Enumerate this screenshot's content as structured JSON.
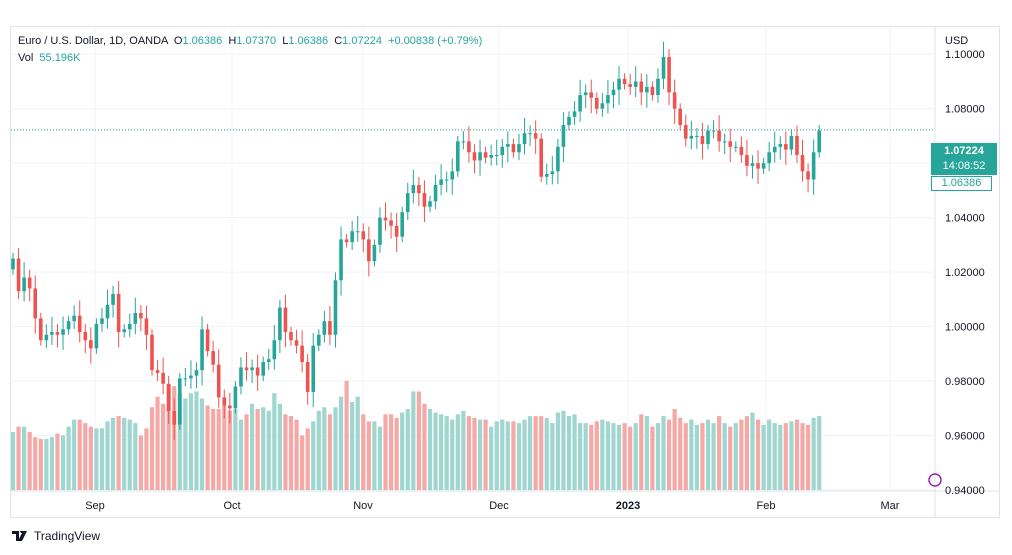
{
  "legend": {
    "symbol": "Euro / U.S. Dollar, 1D, OANDA",
    "o_label": "O",
    "o": "1.06386",
    "h_label": "H",
    "h": "1.07370",
    "l_label": "L",
    "l": "1.06386",
    "c_label": "C",
    "c": "1.07224",
    "change": "+0.00838 (+0.79%)",
    "vol_label": "Vol",
    "vol": "55.196K"
  },
  "price_tag": {
    "price": "1.07224",
    "countdown": "14:08:52"
  },
  "low_tag": "1.06386",
  "currency": "USD",
  "brand": "TradingView",
  "colors": {
    "up": "#26a69a",
    "down": "#ef5350",
    "up_vol": "#9fd6cf",
    "down_vol": "#f5a9a7"
  },
  "chart_data": {
    "type": "candlestick",
    "ylim": [
      0.94,
      1.11
    ],
    "yticks": [
      "1.10000",
      "1.08000",
      "1.06000",
      "1.04000",
      "1.02000",
      "1.00000",
      "0.98000",
      "0.96000",
      "0.94000"
    ],
    "xticks": [
      "Sep",
      "Oct",
      "Nov",
      "Dec",
      "2023",
      "Feb",
      "Mar"
    ],
    "close_line": 1.07224,
    "closes": [
      1.025,
      1.013,
      1.018,
      1.014,
      1.003,
      0.995,
      0.997,
      0.998,
      0.997,
      0.999,
      1.002,
      1.004,
      0.998,
      0.995,
      0.992,
      1.001,
      1.003,
      1.008,
      1.012,
      0.998,
      0.999,
      1.001,
      1.005,
      1.003,
      0.997,
      0.984,
      0.983,
      0.979,
      0.969,
      0.964,
      0.981,
      0.981,
      0.982,
      0.984,
      0.999,
      0.991,
      0.986,
      0.974,
      0.971,
      0.97,
      0.978,
      0.985,
      0.984,
      0.985,
      0.982,
      0.987,
      0.988,
      0.995,
      1.007,
      0.998,
      0.995,
      0.993,
      0.987,
      0.976,
      0.993,
      0.997,
      1.002,
      0.997,
      1.017,
      1.032,
      1.031,
      1.035,
      1.035,
      1.032,
      1.024,
      1.03,
      1.04,
      1.039,
      1.037,
      1.033,
      1.042,
      1.049,
      1.052,
      1.049,
      1.044,
      1.046,
      1.052,
      1.054,
      1.054,
      1.057,
      1.068,
      1.068,
      1.064,
      1.061,
      1.064,
      1.062,
      1.063,
      1.063,
      1.066,
      1.067,
      1.064,
      1.067,
      1.071,
      1.071,
      1.069,
      1.055,
      1.056,
      1.057,
      1.066,
      1.074,
      1.077,
      1.079,
      1.085,
      1.086,
      1.084,
      1.08,
      1.082,
      1.085,
      1.087,
      1.091,
      1.089,
      1.088,
      1.09,
      1.086,
      1.088,
      1.085,
      1.091,
      1.099,
      1.086,
      1.08,
      1.074,
      1.069,
      1.07,
      1.07,
      1.067,
      1.072,
      1.072,
      1.068,
      1.068,
      1.066,
      1.066,
      1.063,
      1.059,
      1.06,
      1.058,
      1.06,
      1.064,
      1.066,
      1.067,
      1.065,
      1.07,
      1.063,
      1.057,
      1.054,
      1.064,
      1.072
    ],
    "volumes": [
      0.33,
      0.36,
      0.36,
      0.33,
      0.3,
      0.29,
      0.29,
      0.3,
      0.32,
      0.31,
      0.36,
      0.4,
      0.4,
      0.38,
      0.36,
      0.35,
      0.35,
      0.39,
      0.41,
      0.42,
      0.41,
      0.4,
      0.38,
      0.31,
      0.35,
      0.47,
      0.53,
      0.49,
      0.6,
      0.59,
      0.55,
      0.52,
      0.55,
      0.56,
      0.52,
      0.48,
      0.46,
      0.46,
      0.48,
      0.45,
      0.46,
      0.4,
      0.43,
      0.49,
      0.46,
      0.47,
      0.45,
      0.55,
      0.49,
      0.43,
      0.42,
      0.4,
      0.31,
      0.35,
      0.39,
      0.45,
      0.47,
      0.43,
      0.47,
      0.53,
      0.62,
      0.5,
      0.53,
      0.43,
      0.39,
      0.39,
      0.36,
      0.43,
      0.43,
      0.41,
      0.44,
      0.46,
      0.56,
      0.56,
      0.49,
      0.46,
      0.44,
      0.43,
      0.42,
      0.4,
      0.43,
      0.45,
      0.42,
      0.41,
      0.4,
      0.4,
      0.36,
      0.39,
      0.4,
      0.39,
      0.39,
      0.38,
      0.4,
      0.42,
      0.42,
      0.42,
      0.41,
      0.38,
      0.44,
      0.45,
      0.42,
      0.43,
      0.38,
      0.38,
      0.37,
      0.39,
      0.4,
      0.39,
      0.38,
      0.37,
      0.38,
      0.36,
      0.38,
      0.43,
      0.42,
      0.36,
      0.38,
      0.42,
      0.4,
      0.46,
      0.41,
      0.38,
      0.4,
      0.37,
      0.38,
      0.4,
      0.38,
      0.42,
      0.38,
      0.36,
      0.38,
      0.4,
      0.42,
      0.44,
      0.4,
      0.37,
      0.4,
      0.38,
      0.37,
      0.38,
      0.39,
      0.4,
      0.38,
      0.37,
      0.41,
      0.42
    ],
    "x_slot": 5.56,
    "x_first": 13
  }
}
